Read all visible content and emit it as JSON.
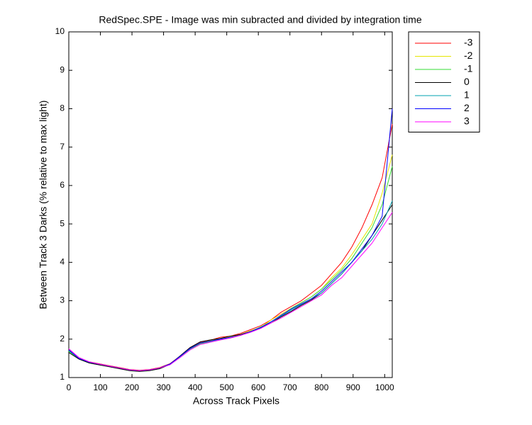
{
  "chart_data": {
    "type": "line",
    "title": "RedSpec.SPE - Image was min subracted and divided by integration time",
    "x_label": "Across Track Pixels",
    "y_label": "Between Track 3 Darks (% relative to max light)",
    "x": [
      0,
      32,
      64,
      96,
      128,
      160,
      192,
      224,
      256,
      288,
      320,
      352,
      384,
      416,
      448,
      480,
      512,
      544,
      576,
      608,
      640,
      672,
      704,
      736,
      768,
      800,
      832,
      864,
      896,
      928,
      960,
      992,
      1024
    ],
    "xlim": [
      0,
      1024
    ],
    "xticks": [
      0,
      100,
      200,
      300,
      400,
      500,
      600,
      700,
      800,
      900,
      1000
    ],
    "ylim": [
      1,
      10
    ],
    "yticks": [
      1,
      2,
      3,
      4,
      5,
      6,
      7,
      8,
      9,
      10
    ],
    "legend": "outside-top-right",
    "series": [
      {
        "name": "-3",
        "color": "#ff0000",
        "values": [
          1.72,
          1.52,
          1.41,
          1.36,
          1.31,
          1.26,
          1.21,
          1.19,
          1.21,
          1.26,
          1.36,
          1.56,
          1.78,
          1.92,
          1.97,
          2.05,
          2.08,
          2.15,
          2.25,
          2.35,
          2.5,
          2.7,
          2.85,
          3.0,
          3.2,
          3.4,
          3.7,
          4.0,
          4.4,
          4.9,
          5.5,
          6.2,
          7.6
        ]
      },
      {
        "name": "-2",
        "color": "#e6e600",
        "values": [
          1.7,
          1.5,
          1.4,
          1.35,
          1.3,
          1.25,
          1.2,
          1.18,
          1.2,
          1.25,
          1.35,
          1.55,
          1.76,
          1.9,
          1.96,
          2.02,
          2.06,
          2.12,
          2.22,
          2.3,
          2.5,
          2.65,
          2.8,
          2.95,
          3.1,
          3.3,
          3.6,
          3.85,
          4.2,
          4.6,
          5.0,
          5.8,
          6.8
        ]
      },
      {
        "name": "-1",
        "color": "#33dd33",
        "values": [
          1.68,
          1.49,
          1.39,
          1.34,
          1.29,
          1.24,
          1.19,
          1.17,
          1.19,
          1.24,
          1.34,
          1.54,
          1.74,
          1.88,
          1.93,
          1.98,
          2.03,
          2.1,
          2.2,
          2.32,
          2.45,
          2.6,
          2.8,
          2.95,
          3.1,
          3.3,
          3.55,
          3.8,
          4.1,
          4.5,
          4.9,
          5.5,
          6.5
        ]
      },
      {
        "name": "0",
        "color": "#000000",
        "values": [
          1.65,
          1.48,
          1.38,
          1.33,
          1.28,
          1.23,
          1.18,
          1.16,
          1.18,
          1.23,
          1.34,
          1.56,
          1.78,
          1.93,
          1.98,
          2.02,
          2.08,
          2.12,
          2.2,
          2.3,
          2.42,
          2.58,
          2.72,
          2.88,
          3.02,
          3.2,
          3.45,
          3.7,
          4.0,
          4.3,
          4.7,
          5.1,
          5.5
        ]
      },
      {
        "name": "1",
        "color": "#00a0b0",
        "values": [
          1.7,
          1.5,
          1.4,
          1.35,
          1.3,
          1.25,
          1.2,
          1.18,
          1.2,
          1.25,
          1.35,
          1.55,
          1.75,
          1.9,
          1.95,
          2.0,
          2.05,
          2.1,
          2.2,
          2.3,
          2.45,
          2.6,
          2.75,
          2.9,
          3.05,
          3.2,
          3.45,
          3.7,
          4.0,
          4.3,
          4.6,
          5.0,
          5.6
        ]
      },
      {
        "name": "2",
        "color": "#0000ff",
        "values": [
          1.72,
          1.5,
          1.4,
          1.35,
          1.3,
          1.25,
          1.2,
          1.18,
          1.2,
          1.25,
          1.35,
          1.55,
          1.76,
          1.9,
          1.95,
          2.0,
          2.05,
          2.1,
          2.2,
          2.3,
          2.45,
          2.62,
          2.78,
          2.92,
          3.05,
          3.25,
          3.5,
          3.75,
          4.0,
          4.35,
          4.7,
          5.2,
          8.0
        ]
      },
      {
        "name": "3",
        "color": "#ff00ff",
        "values": [
          1.75,
          1.52,
          1.41,
          1.35,
          1.3,
          1.25,
          1.2,
          1.18,
          1.2,
          1.25,
          1.33,
          1.52,
          1.72,
          1.86,
          1.92,
          1.98,
          2.03,
          2.1,
          2.18,
          2.28,
          2.42,
          2.55,
          2.7,
          2.85,
          3.0,
          3.15,
          3.4,
          3.6,
          3.9,
          4.2,
          4.5,
          4.9,
          5.3
        ]
      }
    ]
  }
}
